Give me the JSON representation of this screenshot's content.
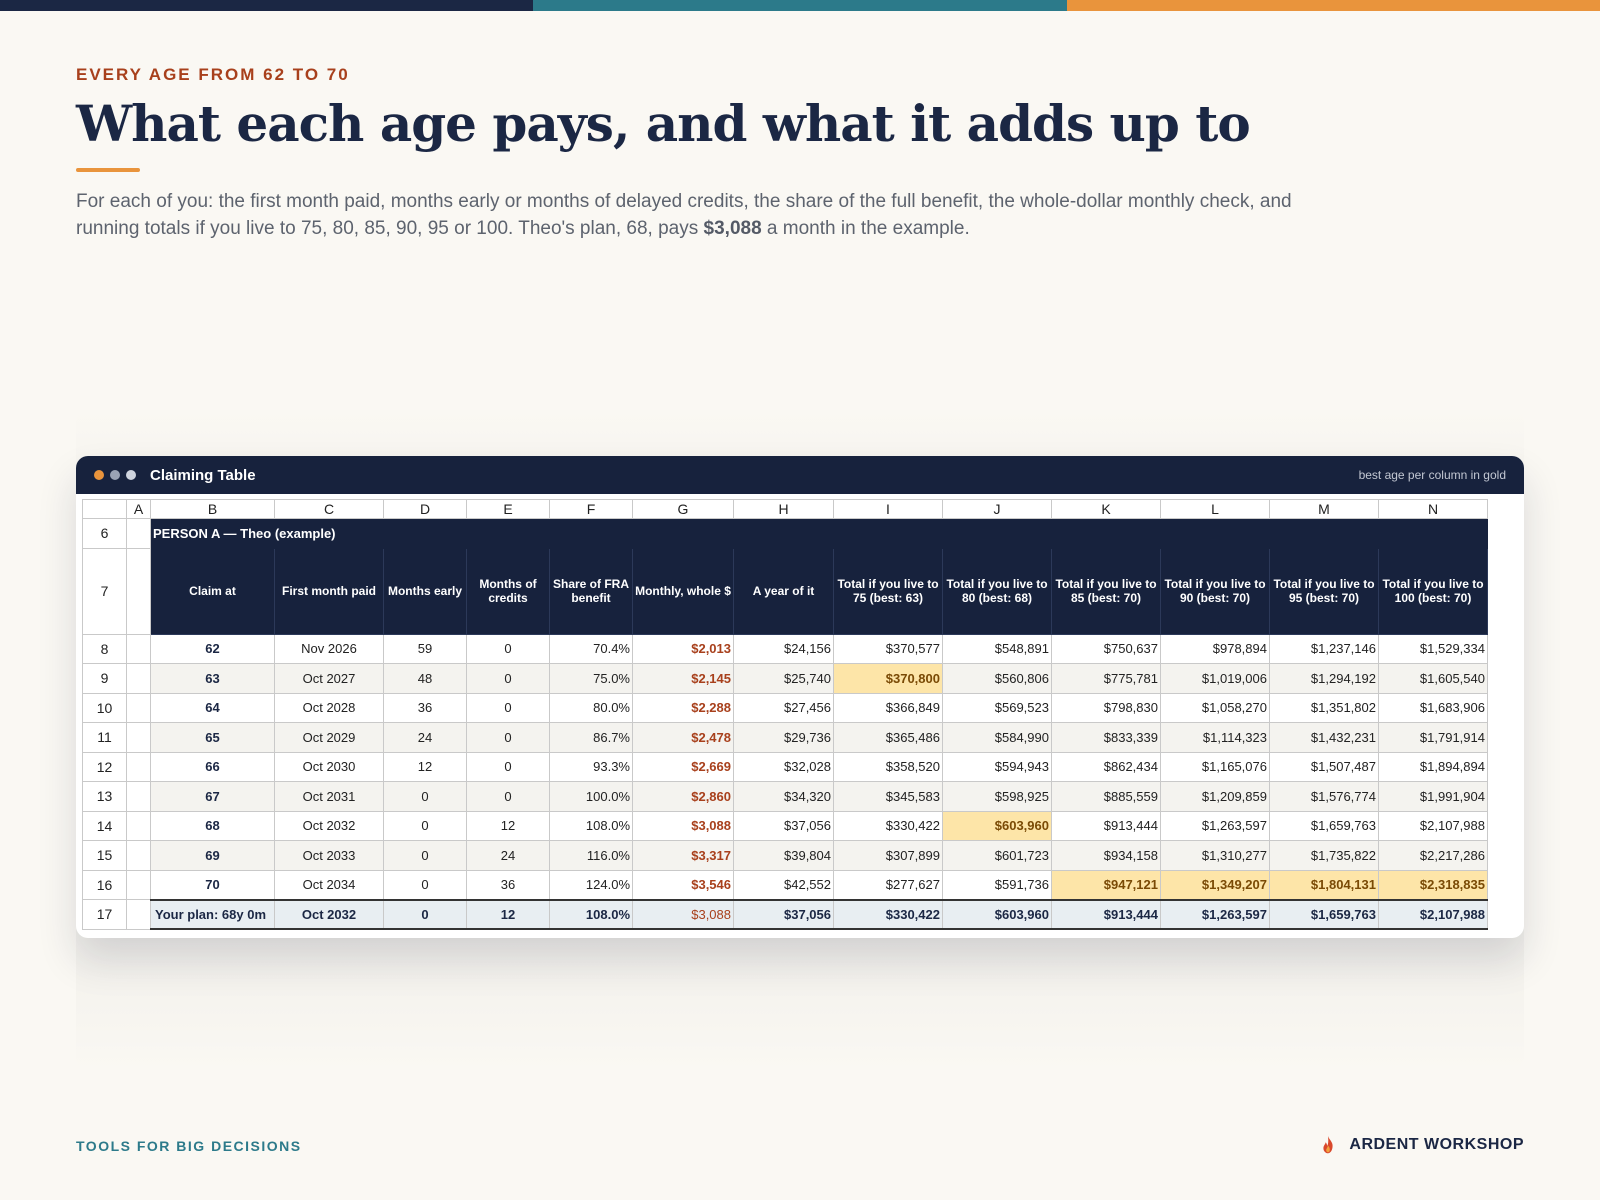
{
  "brand_colors": {
    "navy": "#1b2744",
    "teal": "#2c7a8a",
    "orange": "#e9943c",
    "rust": "#a8401c",
    "gold": "#fde5a8"
  },
  "header": {
    "eyebrow": "EVERY AGE FROM 62 TO 70",
    "title": "What each age pays, and what it adds up to",
    "lead_before": "For each of you: the first month paid, months early or months of delayed credits, the share of the full benefit, the whole-dollar monthly check, and running totals if you live to 75, 80, 85, 90, 95 or 100. Theo's plan, 68, pays ",
    "lead_bold": "$3,088",
    "lead_after": " a month in the example."
  },
  "window": {
    "title": "Claiming Table",
    "note": "best age per column in gold",
    "dot_colors": [
      "#e9943c",
      "#9aa3b5",
      "#cfd4de"
    ]
  },
  "sheet": {
    "columns": [
      "A",
      "B",
      "C",
      "D",
      "E",
      "F",
      "G",
      "H",
      "I",
      "J",
      "K",
      "L",
      "M",
      "N"
    ],
    "person_row": {
      "num": "6",
      "label": "PERSON A  —  Theo (example)"
    },
    "header_row": {
      "num": "7",
      "labels": [
        "Claim at",
        "First month paid",
        "Months early",
        "Months of credits",
        "Share of FRA benefit",
        "Monthly, whole $",
        "A year of it",
        "Total if you live to 75 (best: 63)",
        "Total if you live to 80 (best: 68)",
        "Total if you live to 85 (best: 70)",
        "Total if you live to 90 (best: 70)",
        "Total if you live to 95 (best: 70)",
        "Total if you live to 100 (best: 70)"
      ]
    },
    "rows": [
      {
        "num": "8",
        "cells": [
          "62",
          "Nov 2026",
          "59",
          "0",
          "70.4%",
          "$2,013",
          "$24,156",
          "$370,577",
          "$548,891",
          "$750,637",
          "$978,894",
          "$1,237,146",
          "$1,529,334"
        ]
      },
      {
        "num": "9",
        "cells": [
          "63",
          "Oct 2027",
          "48",
          "0",
          "75.0%",
          "$2,145",
          "$25,740",
          "$370,800",
          "$560,806",
          "$775,781",
          "$1,019,006",
          "$1,294,192",
          "$1,605,540"
        ]
      },
      {
        "num": "10",
        "cells": [
          "64",
          "Oct 2028",
          "36",
          "0",
          "80.0%",
          "$2,288",
          "$27,456",
          "$366,849",
          "$569,523",
          "$798,830",
          "$1,058,270",
          "$1,351,802",
          "$1,683,906"
        ]
      },
      {
        "num": "11",
        "cells": [
          "65",
          "Oct 2029",
          "24",
          "0",
          "86.7%",
          "$2,478",
          "$29,736",
          "$365,486",
          "$584,990",
          "$833,339",
          "$1,114,323",
          "$1,432,231",
          "$1,791,914"
        ]
      },
      {
        "num": "12",
        "cells": [
          "66",
          "Oct 2030",
          "12",
          "0",
          "93.3%",
          "$2,669",
          "$32,028",
          "$358,520",
          "$594,943",
          "$862,434",
          "$1,165,076",
          "$1,507,487",
          "$1,894,894"
        ]
      },
      {
        "num": "13",
        "cells": [
          "67",
          "Oct 2031",
          "0",
          "0",
          "100.0%",
          "$2,860",
          "$34,320",
          "$345,583",
          "$598,925",
          "$885,559",
          "$1,209,859",
          "$1,576,774",
          "$1,991,904"
        ]
      },
      {
        "num": "14",
        "cells": [
          "68",
          "Oct 2032",
          "0",
          "12",
          "108.0%",
          "$3,088",
          "$37,056",
          "$330,422",
          "$603,960",
          "$913,444",
          "$1,263,597",
          "$1,659,763",
          "$2,107,988"
        ]
      },
      {
        "num": "15",
        "cells": [
          "69",
          "Oct 2033",
          "0",
          "24",
          "116.0%",
          "$3,317",
          "$39,804",
          "$307,899",
          "$601,723",
          "$934,158",
          "$1,310,277",
          "$1,735,822",
          "$2,217,286"
        ]
      },
      {
        "num": "16",
        "cells": [
          "70",
          "Oct 2034",
          "0",
          "36",
          "124.0%",
          "$3,546",
          "$42,552",
          "$277,627",
          "$591,736",
          "$947,121",
          "$1,349,207",
          "$1,804,131",
          "$2,318,835"
        ]
      }
    ],
    "best_cells": [
      [
        1,
        7
      ],
      [
        6,
        8
      ],
      [
        8,
        9
      ],
      [
        8,
        10
      ],
      [
        8,
        11
      ],
      [
        8,
        12
      ]
    ],
    "plan_row": {
      "num": "17",
      "cells": [
        "Your plan: 68y 0m",
        "Oct 2032",
        "0",
        "12",
        "108.0%",
        "$3,088",
        "$37,056",
        "$330,422",
        "$603,960",
        "$913,444",
        "$1,263,597",
        "$1,659,763",
        "$2,107,988"
      ]
    }
  },
  "footer": {
    "left": "TOOLS FOR BIG DECISIONS",
    "brand": "ARDENT WORKSHOP",
    "brand_icon": "flame-icon"
  }
}
